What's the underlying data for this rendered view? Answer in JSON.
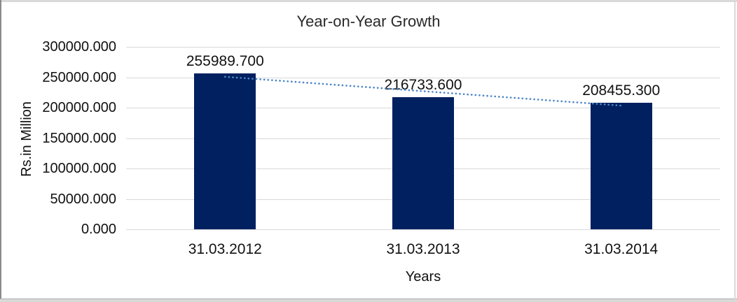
{
  "panel": {
    "background": "#ffffff",
    "frame_color": "#d9d9d9"
  },
  "chart_data": {
    "type": "bar",
    "title": "Year-on-Year Growth",
    "xlabel": "Years",
    "ylabel": "Rs.in Million",
    "categories": [
      "31.03.2012",
      "31.03.2013",
      "31.03.2014"
    ],
    "values": [
      255989.7,
      216733.6,
      208455.3
    ],
    "data_labels": [
      "255989.700",
      "216733.600",
      "208455.300"
    ],
    "ytick_labels": [
      "0.000",
      "50000.000",
      "100000.000",
      "150000.000",
      "200000.000",
      "250000.000",
      "300000.000"
    ],
    "ytick_values": [
      0,
      50000,
      100000,
      150000,
      200000,
      250000,
      300000
    ],
    "ylim": [
      0,
      300000
    ],
    "grid": "horizontal",
    "legend": "none",
    "trendline": {
      "type": "linear",
      "style": "dotted",
      "color": "#4e86c8"
    },
    "colors": {
      "bar": "#002060",
      "gridline": "#d9d9d9",
      "text": "#111111"
    }
  }
}
